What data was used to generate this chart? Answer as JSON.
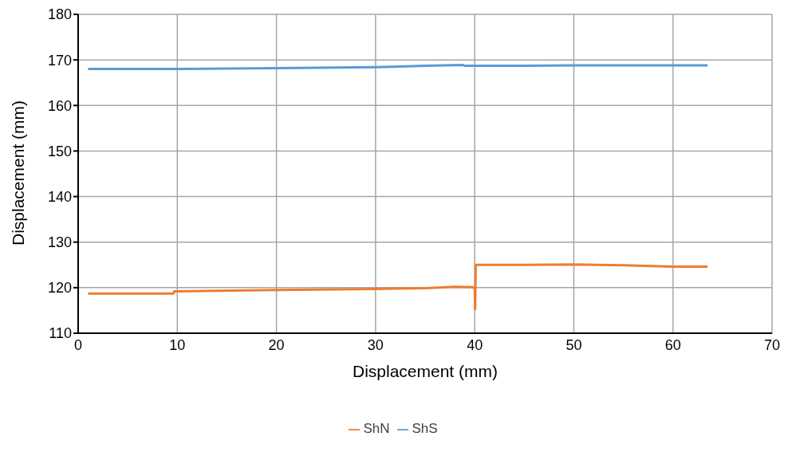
{
  "chart_data": {
    "type": "line",
    "xlabel": "Displacement (mm)",
    "ylabel": "Displacement (mm)",
    "xlim": [
      0,
      70
    ],
    "xticks": [
      0,
      10,
      20,
      30,
      40,
      50,
      60,
      70
    ],
    "ylim": [
      110,
      180
    ],
    "yticks": [
      110,
      120,
      130,
      140,
      150,
      160,
      170,
      180
    ],
    "grid": true,
    "legend": "bottom",
    "marker": "none",
    "line_style": "solid",
    "series": [
      {
        "name": "ShS",
        "color": "#5b9bd5",
        "x": [
          1,
          10,
          20,
          30,
          35,
          38.8,
          39,
          45,
          50,
          55,
          60,
          63.5
        ],
        "values": [
          168,
          168,
          168.2,
          168.4,
          168.7,
          168.9,
          168.7,
          168.7,
          168.8,
          168.8,
          168.8,
          168.8
        ]
      },
      {
        "name": "ShN",
        "color": "#ed7d31",
        "x": [
          1,
          9.6,
          9.7,
          20,
          30,
          35,
          38,
          39.8,
          40,
          40.05,
          40.1,
          45,
          50,
          55,
          60,
          63.5
        ],
        "values": [
          118.7,
          118.7,
          119.2,
          119.5,
          119.7,
          119.9,
          120.2,
          120.1,
          119.8,
          115.3,
          125,
          125,
          125.1,
          124.9,
          124.6,
          124.6
        ]
      }
    ]
  }
}
